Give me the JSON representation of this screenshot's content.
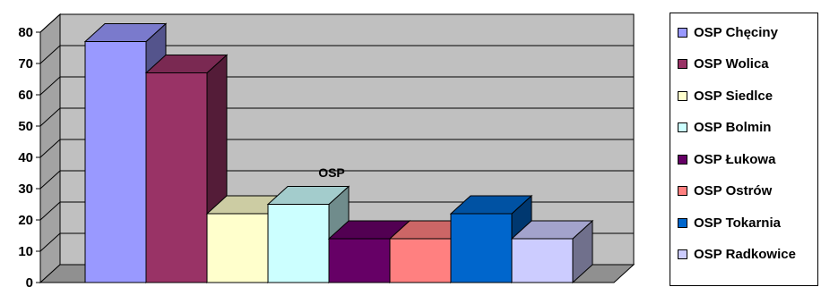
{
  "chart_data": {
    "type": "bar",
    "style": "3d-clustered-column",
    "categories": [
      "OSP"
    ],
    "series": [
      {
        "name": "OSP Chęciny",
        "values": [
          77
        ],
        "color": "#9999ff"
      },
      {
        "name": "OSP Wolica",
        "values": [
          67
        ],
        "color": "#993366"
      },
      {
        "name": "OSP Siedlce",
        "values": [
          22
        ],
        "color": "#ffffcc"
      },
      {
        "name": "OSP Bolmin",
        "values": [
          25
        ],
        "color": "#ccffff"
      },
      {
        "name": "OSP Łukowa",
        "values": [
          14
        ],
        "color": "#660066"
      },
      {
        "name": "OSP Ostrów",
        "values": [
          14
        ],
        "color": "#ff8080"
      },
      {
        "name": "OSP Tokarnia",
        "values": [
          22
        ],
        "color": "#0066cc"
      },
      {
        "name": "OSP Radkowice",
        "values": [
          14
        ],
        "color": "#ccccff"
      }
    ],
    "ylim": [
      0,
      80
    ],
    "yticks": [
      "0",
      "10",
      "20",
      "30",
      "40",
      "50",
      "60",
      "70",
      "80"
    ],
    "grid": true,
    "legend": "right",
    "wall_color": "#c0c0c0"
  }
}
